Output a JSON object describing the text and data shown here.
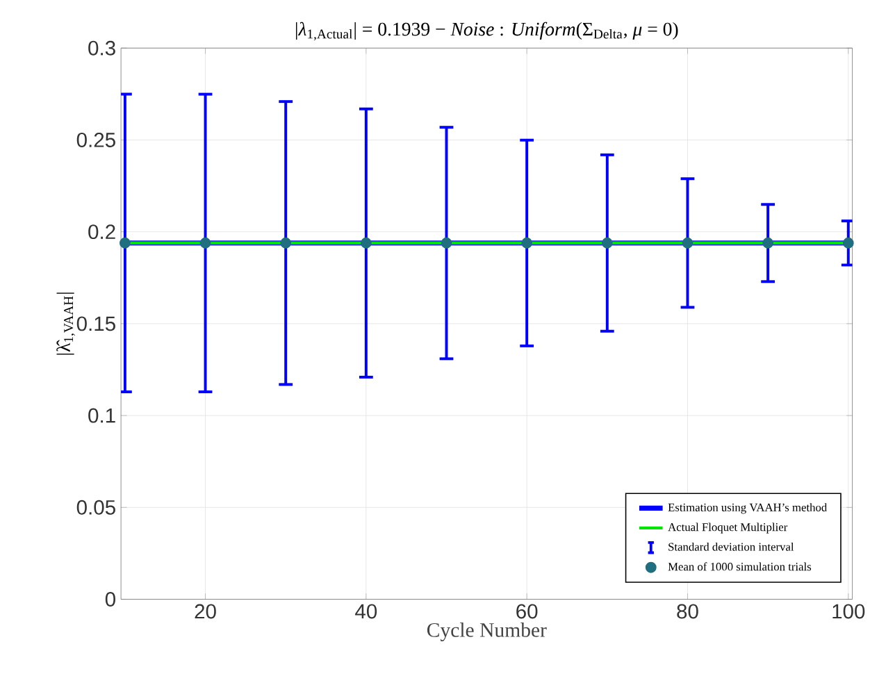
{
  "chart_data": {
    "type": "line",
    "title": "|*λ*$_{1,Actual}$| = 0.1939 − *Noise* : *Uniform*(Σ$_{Delta}$, *μ* = 0)",
    "xlabel": "Cycle Number",
    "ylabel": "|λ̂$_{1,VAAH}$|",
    "x": [
      10,
      20,
      30,
      40,
      50,
      60,
      70,
      80,
      90,
      100
    ],
    "series": [
      {
        "name": "Estimation using VAAH’s method",
        "color": "#0000ff",
        "marker": "none",
        "values": [
          0.1939,
          0.1939,
          0.1939,
          0.1939,
          0.1939,
          0.1939,
          0.1939,
          0.1939,
          0.1939,
          0.1939
        ]
      },
      {
        "name": "Actual Floquet Multiplier",
        "color": "#00e600",
        "marker": "none",
        "values": [
          0.1939,
          0.1939,
          0.1939,
          0.1939,
          0.1939,
          0.1939,
          0.1939,
          0.1939,
          0.1939,
          0.1939
        ]
      },
      {
        "name": "Standard deviation interval",
        "type": "scatter",
        "color": "#0000ff",
        "marker": "none",
        "values": [
          null,
          null,
          null,
          null,
          null,
          null,
          null,
          null,
          null,
          null
        ]
      },
      {
        "name": "Mean of 1000 simulation trials",
        "type": "scatter",
        "color": "#1f6f80",
        "marker": "circle",
        "values": [
          0.1939,
          0.1939,
          0.1939,
          0.1939,
          0.1939,
          0.1939,
          0.1939,
          0.1939,
          0.1939,
          0.1939
        ],
        "errors": [
          0.081,
          0.081,
          0.077,
          0.073,
          0.063,
          0.056,
          0.048,
          0.035,
          0.021,
          0.012
        ]
      }
    ],
    "xlim": [
      9.5,
      100.5
    ],
    "xticks": [
      20,
      40,
      60,
      80,
      100
    ],
    "ylim": [
      0,
      0.3
    ],
    "yticks": [
      0,
      0.05,
      0.1,
      0.15,
      0.2,
      0.25,
      0.3
    ],
    "grid": true,
    "legend": "bottom right"
  }
}
